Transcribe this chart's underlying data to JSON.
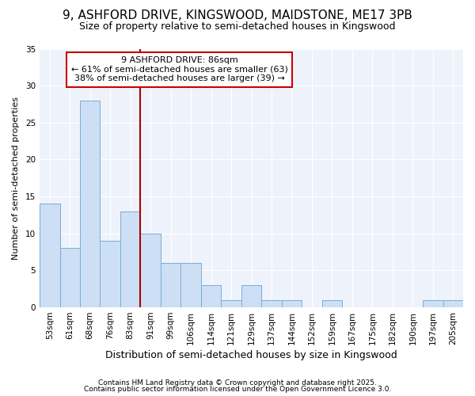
{
  "title1": "9, ASHFORD DRIVE, KINGSWOOD, MAIDSTONE, ME17 3PB",
  "title2": "Size of property relative to semi-detached houses in Kingswood",
  "xlabel": "Distribution of semi-detached houses by size in Kingswood",
  "ylabel": "Number of semi-detached properties",
  "footnote1": "Contains HM Land Registry data © Crown copyright and database right 2025.",
  "footnote2": "Contains public sector information licensed under the Open Government Licence 3.0.",
  "categories": [
    "53sqm",
    "61sqm",
    "68sqm",
    "76sqm",
    "83sqm",
    "91sqm",
    "99sqm",
    "106sqm",
    "114sqm",
    "121sqm",
    "129sqm",
    "137sqm",
    "144sqm",
    "152sqm",
    "159sqm",
    "167sqm",
    "175sqm",
    "182sqm",
    "190sqm",
    "197sqm",
    "205sqm"
  ],
  "values": [
    14,
    8,
    28,
    9,
    13,
    10,
    6,
    6,
    3,
    1,
    3,
    1,
    1,
    0,
    1,
    0,
    0,
    0,
    0,
    1,
    1
  ],
  "bar_color": "#ccdff5",
  "bar_edge_color": "#7aadd4",
  "vline_x_index": 4.5,
  "vline_color": "#aa0000",
  "annotation_title": "9 ASHFORD DRIVE: 86sqm",
  "annotation_line1": "← 61% of semi-detached houses are smaller (63)",
  "annotation_line2": "38% of semi-detached houses are larger (39) →",
  "annotation_box_facecolor": "#ffffff",
  "annotation_box_edgecolor": "#cc0000",
  "ylim": [
    0,
    35
  ],
  "yticks": [
    0,
    5,
    10,
    15,
    20,
    25,
    30,
    35
  ],
  "background_color": "#ffffff",
  "plot_area_color": "#eef3fb",
  "grid_color": "#ffffff",
  "title1_fontsize": 11,
  "title2_fontsize": 9,
  "xlabel_fontsize": 9,
  "ylabel_fontsize": 8,
  "tick_fontsize": 7.5,
  "footnote_fontsize": 6.5
}
